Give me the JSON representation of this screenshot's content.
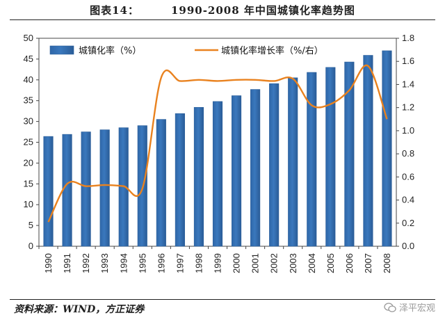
{
  "header": {
    "prefix": "图表14：",
    "title": "1990-2008 年中国城镇化率趋势图"
  },
  "footer": {
    "source": "资料来源：WIND，方正证券",
    "watermark": "泽平宏观"
  },
  "colors": {
    "bar": "#3a78bd",
    "bar_edge": "#2b5f9b",
    "line": "#e9821f"
  },
  "chart_data": {
    "type": "bar",
    "categories": [
      "1990",
      "1991",
      "1992",
      "1993",
      "1994",
      "1995",
      "1996",
      "1997",
      "1998",
      "1999",
      "2000",
      "2001",
      "2002",
      "2003",
      "2004",
      "2005",
      "2006",
      "2007",
      "2008"
    ],
    "series": [
      {
        "name": "城镇化率（%）",
        "type": "bar",
        "axis": "left",
        "values": [
          26.4,
          26.9,
          27.5,
          28.0,
          28.5,
          29.0,
          30.5,
          31.9,
          33.4,
          34.8,
          36.2,
          37.7,
          39.1,
          40.5,
          41.8,
          43.0,
          44.3,
          45.9,
          47.0
        ]
      },
      {
        "name": "城镇化率增长率（%/右）",
        "type": "line",
        "axis": "right",
        "values": [
          0.21,
          0.54,
          0.52,
          0.53,
          0.52,
          0.5,
          1.46,
          1.43,
          1.44,
          1.43,
          1.44,
          1.44,
          1.43,
          1.45,
          1.22,
          1.23,
          1.35,
          1.56,
          1.1
        ]
      }
    ],
    "yleft": {
      "range": [
        0,
        50
      ],
      "ticks": [
        "0",
        "5",
        "10",
        "15",
        "20",
        "25",
        "30",
        "35",
        "40",
        "45",
        "50"
      ]
    },
    "yright": {
      "range": [
        0,
        1.8
      ],
      "ticks": [
        "0.0",
        "0.2",
        "0.4",
        "0.6",
        "0.8",
        "1.0",
        "1.2",
        "1.4",
        "1.6",
        "1.8"
      ]
    },
    "legend_position": "top-left",
    "grid": false
  }
}
